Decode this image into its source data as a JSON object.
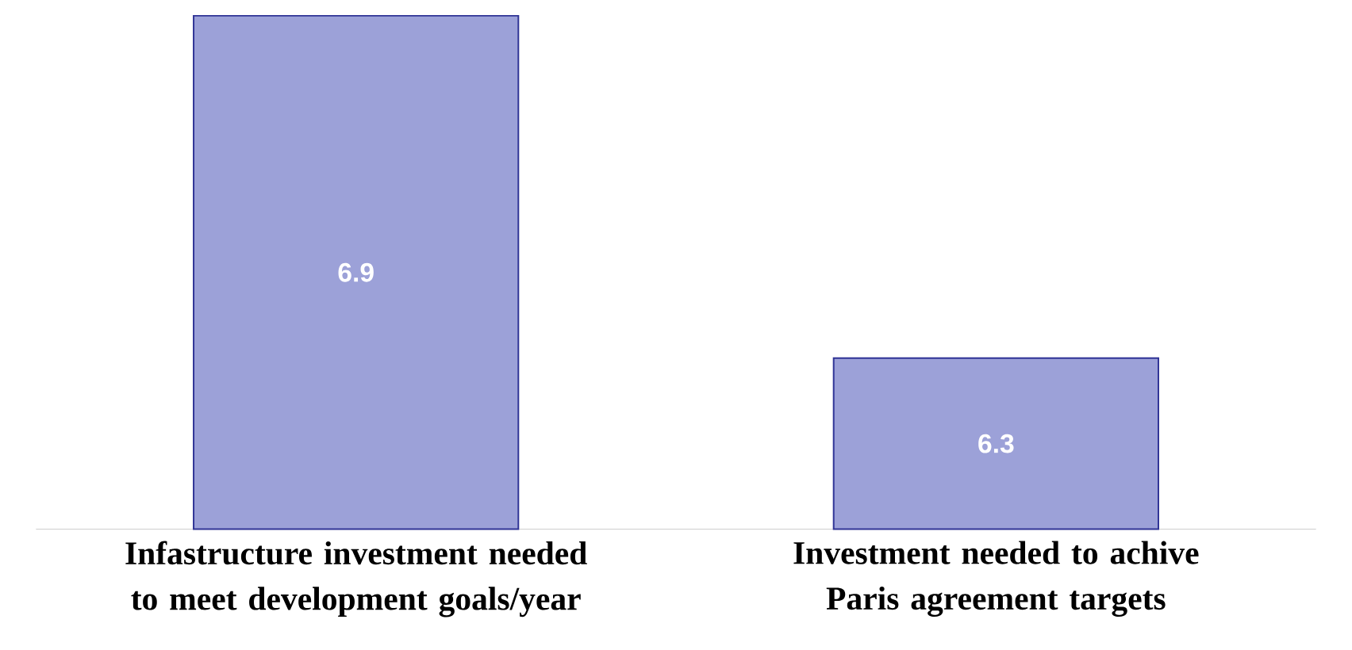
{
  "chart_data": {
    "type": "bar",
    "categories": [
      "Infastructure investment needed to meet development goals/year",
      "Investment needed to achive Paris agreement targets"
    ],
    "values": [
      6.9,
      6.3
    ],
    "color": "#9ca1d8",
    "ylim": [
      6.0,
      6.9
    ],
    "data_labels": true
  }
}
